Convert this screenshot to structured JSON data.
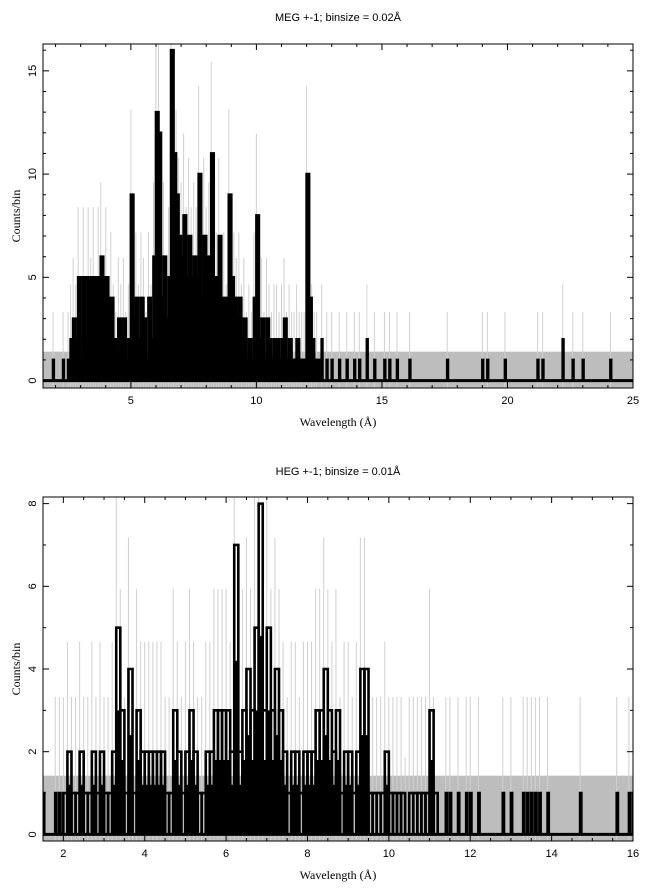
{
  "chart_data": [
    {
      "type": "bar",
      "title": "MEG +-1; binsize = 0.02Å",
      "xlabel": "Wavelength (Å)",
      "ylabel": "Counts/bin",
      "xlim": [
        1.5,
        25
      ],
      "ylim": [
        -0.36,
        16.3
      ],
      "xticks": [
        5,
        10,
        15,
        20,
        25
      ],
      "yticks": [
        0,
        5,
        10,
        15
      ],
      "x_minor_step": 1,
      "y_minor_step": 1,
      "background_band_level": 1.4,
      "grid": false,
      "dense": {
        "x_start": 2.5,
        "step": 0.1,
        "counts": [
          1,
          2,
          3,
          2,
          5,
          1,
          5,
          2,
          5,
          3,
          5,
          2,
          5,
          6,
          3,
          5,
          2,
          4,
          2,
          1,
          3,
          2,
          3,
          1,
          2,
          9,
          3,
          4,
          2,
          4,
          3,
          1,
          4,
          2,
          6,
          13,
          12,
          4,
          6,
          3,
          5,
          16,
          11,
          9,
          7,
          6,
          8,
          5,
          7,
          5,
          6,
          5,
          10,
          4,
          7,
          5,
          6,
          11,
          5,
          4,
          7,
          3,
          4,
          2,
          9,
          5,
          4,
          3,
          4,
          2,
          3,
          1,
          2,
          1,
          4,
          8,
          2,
          3,
          1,
          3,
          2,
          1,
          2,
          2,
          1,
          2,
          3,
          1,
          2,
          1,
          1,
          2,
          1,
          1,
          1,
          10,
          4,
          2,
          1,
          1
        ]
      },
      "sparse": [
        [
          1.9,
          1
        ],
        [
          2.3,
          1
        ],
        [
          12.6,
          2
        ],
        [
          12.8,
          1
        ],
        [
          13.0,
          1
        ],
        [
          13.3,
          1
        ],
        [
          13.6,
          1
        ],
        [
          13.9,
          1
        ],
        [
          14.1,
          1
        ],
        [
          14.4,
          2
        ],
        [
          14.7,
          1
        ],
        [
          15.1,
          1
        ],
        [
          15.3,
          1
        ],
        [
          15.6,
          1
        ],
        [
          16.1,
          1
        ],
        [
          17.6,
          1
        ],
        [
          19.0,
          1
        ],
        [
          19.2,
          1
        ],
        [
          19.9,
          1
        ],
        [
          21.2,
          1
        ],
        [
          21.4,
          1
        ],
        [
          22.2,
          2
        ],
        [
          22.6,
          1
        ],
        [
          23.0,
          1
        ],
        [
          24.1,
          1
        ]
      ]
    },
    {
      "type": "bar",
      "title": "HEG +-1; binsize = 0.01Å",
      "xlabel": "Wavelength (Å)",
      "ylabel": "Counts/bin",
      "xlim": [
        1.5,
        16
      ],
      "ylim": [
        -0.16,
        8.16
      ],
      "xticks": [
        2,
        4,
        6,
        8,
        10,
        12,
        14,
        16
      ],
      "yticks": [
        0,
        2,
        4,
        6,
        8
      ],
      "x_minor_step": 0.5,
      "y_minor_step": 1,
      "background_band_level": 1.42,
      "grid": false,
      "dense": {
        "x_start": 2.0,
        "step": 0.1,
        "counts": [
          1,
          2,
          1,
          1,
          2,
          1,
          1,
          2,
          1,
          2,
          1,
          1,
          2,
          5,
          3,
          1,
          4,
          1,
          3,
          2,
          2,
          2,
          2,
          2,
          2,
          1,
          1,
          3,
          2,
          1,
          2,
          3,
          2,
          1,
          1,
          2,
          2,
          3,
          3,
          3,
          3,
          2,
          7,
          2,
          3,
          4,
          3,
          5,
          8,
          3,
          5,
          3,
          4,
          3,
          2,
          1,
          2,
          2,
          1,
          2,
          2,
          2,
          3,
          3,
          4,
          3,
          2,
          3,
          1,
          2,
          2,
          1,
          2,
          4,
          4,
          1,
          1,
          1,
          1,
          2,
          1,
          1,
          1,
          1,
          0,
          1,
          1,
          1,
          1,
          1,
          3,
          1
        ]
      },
      "sparse": [
        [
          1.5,
          1
        ],
        [
          1.8,
          1
        ],
        [
          1.9,
          1
        ],
        [
          11.4,
          1
        ],
        [
          11.5,
          1
        ],
        [
          11.7,
          1
        ],
        [
          11.9,
          1
        ],
        [
          12.0,
          1
        ],
        [
          12.2,
          1
        ],
        [
          12.8,
          1
        ],
        [
          13.0,
          1
        ],
        [
          13.3,
          1
        ],
        [
          13.4,
          1
        ],
        [
          13.5,
          1
        ],
        [
          13.6,
          1
        ],
        [
          13.7,
          1
        ],
        [
          13.9,
          1
        ],
        [
          14.7,
          1
        ],
        [
          15.6,
          1
        ],
        [
          15.9,
          1
        ],
        [
          16.0,
          1
        ]
      ]
    }
  ]
}
